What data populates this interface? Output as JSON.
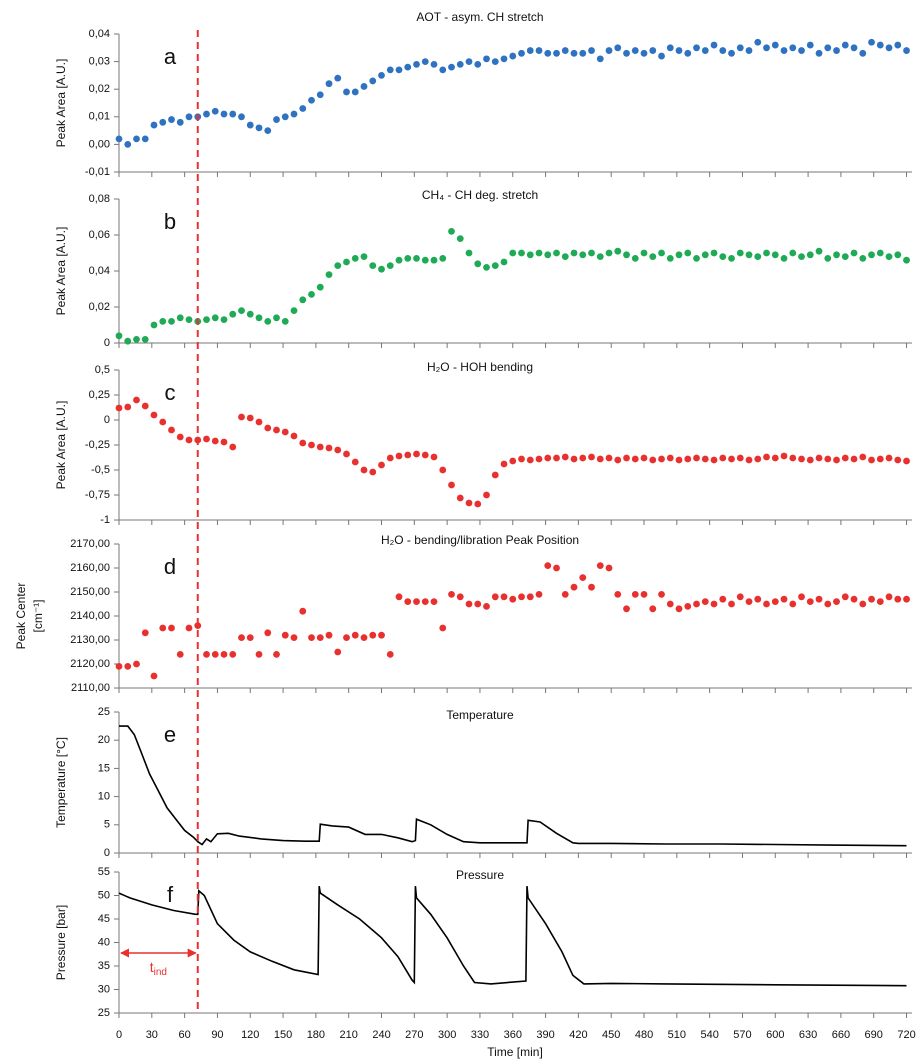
{
  "chart_data": [
    {
      "type": "scatter",
      "panel_label": "a",
      "title": "AOT - asym. CH stretch",
      "ylabel": "Peak Area [A.U.]",
      "color": "#2f72c2",
      "x": [
        0,
        8,
        16,
        24,
        32,
        40,
        48,
        56,
        64,
        72,
        80,
        88,
        96,
        104,
        112,
        120,
        128,
        136,
        144,
        152,
        160,
        168,
        176,
        184,
        192,
        200,
        208,
        216,
        224,
        232,
        240,
        248,
        256,
        264,
        272,
        280,
        288,
        296,
        304,
        312,
        320,
        328,
        336,
        344,
        352,
        360,
        368,
        376,
        384,
        392,
        400,
        408,
        416,
        424,
        432,
        440,
        448,
        456,
        464,
        472,
        480,
        488,
        496,
        504,
        512,
        520,
        528,
        536,
        544,
        552,
        560,
        568,
        576,
        584,
        592,
        600,
        608,
        616,
        624,
        632,
        640,
        648,
        656,
        664,
        672,
        680,
        688,
        696,
        704,
        712,
        720
      ],
      "values": [
        0.002,
        0,
        0.002,
        0.002,
        0.007,
        0.008,
        0.009,
        0.008,
        0.01,
        0.01,
        0.011,
        0.012,
        0.011,
        0.011,
        0.01,
        0.007,
        0.006,
        0.005,
        0.009,
        0.01,
        0.011,
        0.013,
        0.016,
        0.018,
        0.022,
        0.024,
        0.019,
        0.019,
        0.021,
        0.023,
        0.025,
        0.027,
        0.027,
        0.028,
        0.029,
        0.03,
        0.029,
        0.027,
        0.028,
        0.029,
        0.03,
        0.029,
        0.031,
        0.03,
        0.031,
        0.032,
        0.033,
        0.034,
        0.034,
        0.033,
        0.033,
        0.034,
        0.033,
        0.033,
        0.034,
        0.031,
        0.034,
        0.035,
        0.033,
        0.034,
        0.033,
        0.034,
        0.032,
        0.035,
        0.034,
        0.033,
        0.035,
        0.034,
        0.036,
        0.034,
        0.033,
        0.035,
        0.034,
        0.037,
        0.035,
        0.036,
        0.034,
        0.035,
        0.034,
        0.036,
        0.033,
        0.035,
        0.034,
        0.036,
        0.035,
        0.033,
        0.037,
        0.036,
        0.035,
        0.036,
        0.034
      ],
      "xlim": [
        0,
        725
      ],
      "xticks": [
        0,
        30,
        60,
        90,
        120,
        150,
        180,
        210,
        240,
        270,
        300,
        330,
        360,
        390,
        420,
        450,
        480,
        510,
        540,
        570,
        600,
        630,
        660,
        690,
        720
      ],
      "ylim": [
        -0.01,
        0.04
      ],
      "yticks": [
        {
          "value": -0.01,
          "label": "-0,01"
        },
        {
          "value": 0,
          "label": "0,00"
        },
        {
          "value": 0.01,
          "label": "0,01"
        },
        {
          "value": 0.02,
          "label": "0,02"
        },
        {
          "value": 0.03,
          "label": "0,03"
        },
        {
          "value": 0.04,
          "label": "0,04"
        }
      ]
    },
    {
      "type": "scatter",
      "panel_label": "b",
      "title": "CH₄ - CH deg. stretch",
      "ylabel": "Peak Area [A.U.]",
      "color": "#1faa55",
      "x": [
        0,
        8,
        16,
        24,
        32,
        40,
        48,
        56,
        64,
        72,
        80,
        88,
        96,
        104,
        112,
        120,
        128,
        136,
        144,
        152,
        160,
        168,
        176,
        184,
        192,
        200,
        208,
        216,
        224,
        232,
        240,
        248,
        256,
        264,
        272,
        280,
        288,
        296,
        304,
        312,
        320,
        328,
        336,
        344,
        352,
        360,
        368,
        376,
        384,
        392,
        400,
        408,
        416,
        424,
        432,
        440,
        448,
        456,
        464,
        472,
        480,
        488,
        496,
        504,
        512,
        520,
        528,
        536,
        544,
        552,
        560,
        568,
        576,
        584,
        592,
        600,
        608,
        616,
        624,
        632,
        640,
        648,
        656,
        664,
        672,
        680,
        688,
        696,
        704,
        712,
        720
      ],
      "values": [
        0.004,
        0.001,
        0.002,
        0.002,
        0.01,
        0.012,
        0.012,
        0.014,
        0.013,
        0.012,
        0.013,
        0.014,
        0.013,
        0.016,
        0.018,
        0.016,
        0.014,
        0.012,
        0.014,
        0.012,
        0.018,
        0.024,
        0.027,
        0.031,
        0.038,
        0.043,
        0.045,
        0.047,
        0.048,
        0.043,
        0.041,
        0.043,
        0.046,
        0.047,
        0.047,
        0.046,
        0.046,
        0.047,
        0.062,
        0.058,
        0.05,
        0.044,
        0.042,
        0.043,
        0.045,
        0.05,
        0.05,
        0.049,
        0.05,
        0.049,
        0.05,
        0.048,
        0.05,
        0.049,
        0.05,
        0.048,
        0.05,
        0.051,
        0.049,
        0.047,
        0.05,
        0.048,
        0.05,
        0.047,
        0.049,
        0.05,
        0.047,
        0.049,
        0.05,
        0.048,
        0.047,
        0.05,
        0.049,
        0.048,
        0.05,
        0.049,
        0.047,
        0.05,
        0.048,
        0.049,
        0.051,
        0.047,
        0.049,
        0.048,
        0.05,
        0.047,
        0.049,
        0.05,
        0.048,
        0.049,
        0.046
      ],
      "xlim": [
        0,
        725
      ],
      "xticks": [
        0,
        30,
        60,
        90,
        120,
        150,
        180,
        210,
        240,
        270,
        300,
        330,
        360,
        390,
        420,
        450,
        480,
        510,
        540,
        570,
        600,
        630,
        660,
        690,
        720
      ],
      "ylim": [
        0,
        0.08
      ],
      "yticks": [
        0,
        {
          "value": 0.02,
          "label": "0,02"
        },
        {
          "value": 0.04,
          "label": "0,04"
        },
        {
          "value": 0.06,
          "label": "0,06"
        },
        {
          "value": 0.08,
          "label": "0,08"
        }
      ]
    },
    {
      "type": "scatter",
      "panel_label": "c",
      "title": "H₂O - HOH bending",
      "ylabel": "Peak Area [A.U.]",
      "color": "#e8312f",
      "x": [
        0,
        8,
        16,
        24,
        32,
        40,
        48,
        56,
        64,
        72,
        80,
        88,
        96,
        104,
        112,
        120,
        128,
        136,
        144,
        152,
        160,
        168,
        176,
        184,
        192,
        200,
        208,
        216,
        224,
        232,
        240,
        248,
        256,
        264,
        272,
        280,
        288,
        296,
        304,
        312,
        320,
        328,
        336,
        344,
        352,
        360,
        368,
        376,
        384,
        392,
        400,
        408,
        416,
        424,
        432,
        440,
        448,
        456,
        464,
        472,
        480,
        488,
        496,
        504,
        512,
        520,
        528,
        536,
        544,
        552,
        560,
        568,
        576,
        584,
        592,
        600,
        608,
        616,
        624,
        632,
        640,
        648,
        656,
        664,
        672,
        680,
        688,
        696,
        704,
        712,
        720
      ],
      "values": [
        0.12,
        0.13,
        0.2,
        0.14,
        0.05,
        -0.02,
        -0.1,
        -0.17,
        -0.2,
        -0.2,
        -0.19,
        -0.21,
        -0.22,
        -0.27,
        0.03,
        0.02,
        -0.02,
        -0.08,
        -0.1,
        -0.12,
        -0.16,
        -0.23,
        -0.25,
        -0.27,
        -0.28,
        -0.3,
        -0.34,
        -0.42,
        -0.5,
        -0.52,
        -0.45,
        -0.38,
        -0.36,
        -0.35,
        -0.34,
        -0.35,
        -0.37,
        -0.5,
        -0.65,
        -0.78,
        -0.83,
        -0.84,
        -0.75,
        -0.55,
        -0.44,
        -0.41,
        -0.39,
        -0.4,
        -0.39,
        -0.38,
        -0.38,
        -0.37,
        -0.39,
        -0.38,
        -0.37,
        -0.39,
        -0.38,
        -0.4,
        -0.38,
        -0.39,
        -0.38,
        -0.4,
        -0.39,
        -0.38,
        -0.4,
        -0.39,
        -0.38,
        -0.39,
        -0.4,
        -0.38,
        -0.39,
        -0.38,
        -0.4,
        -0.39,
        -0.37,
        -0.38,
        -0.36,
        -0.38,
        -0.39,
        -0.4,
        -0.38,
        -0.39,
        -0.4,
        -0.38,
        -0.39,
        -0.37,
        -0.4,
        -0.39,
        -0.38,
        -0.4,
        -0.41
      ],
      "xlim": [
        0,
        725
      ],
      "xticks": [
        0,
        30,
        60,
        90,
        120,
        150,
        180,
        210,
        240,
        270,
        300,
        330,
        360,
        390,
        420,
        450,
        480,
        510,
        540,
        570,
        600,
        630,
        660,
        690,
        720
      ],
      "ylim": [
        -1,
        0.5
      ],
      "yticks": [
        -1,
        {
          "value": -0.75,
          "label": "-0,75"
        },
        {
          "value": -0.5,
          "label": "-0,5"
        },
        {
          "value": -0.25,
          "label": "-0,25"
        },
        0,
        {
          "value": 0.25,
          "label": "0,25"
        },
        {
          "value": 0.5,
          "label": "0,5"
        }
      ]
    },
    {
      "type": "scatter",
      "panel_label": "d",
      "title": "H₂O - bending/libration Peak Position",
      "ylabel": [
        "Peak Center",
        "[cm⁻¹]"
      ],
      "color": "#e8312f",
      "x": [
        0,
        8,
        16,
        24,
        32,
        40,
        48,
        56,
        64,
        72,
        80,
        88,
        96,
        104,
        112,
        120,
        128,
        136,
        144,
        152,
        160,
        168,
        176,
        184,
        192,
        200,
        208,
        216,
        224,
        232,
        240,
        248,
        256,
        264,
        272,
        280,
        288,
        296,
        304,
        312,
        320,
        328,
        336,
        344,
        352,
        360,
        368,
        376,
        384,
        392,
        400,
        408,
        416,
        424,
        432,
        440,
        448,
        456,
        464,
        472,
        480,
        488,
        496,
        504,
        512,
        520,
        528,
        536,
        544,
        552,
        560,
        568,
        576,
        584,
        592,
        600,
        608,
        616,
        624,
        632,
        640,
        648,
        656,
        664,
        672,
        680,
        688,
        696,
        704,
        712,
        720
      ],
      "values": [
        2119,
        2119,
        2120,
        2133,
        2115,
        2135,
        2135,
        2124,
        2135,
        2136,
        2124,
        2124,
        2124,
        2124,
        2131,
        2131,
        2124,
        2133,
        2124,
        2132,
        2131,
        2142,
        2131,
        2131,
        2132,
        2125,
        2131,
        2132,
        2131,
        2132,
        2132,
        2124,
        2148,
        2146,
        2146,
        2146,
        2146,
        2135,
        2149,
        2148,
        2145,
        2145,
        2144,
        2148,
        2148,
        2147,
        2148,
        2148,
        2149,
        2161,
        2160,
        2149,
        2152,
        2156,
        2152,
        2161,
        2160,
        2149,
        2143,
        2149,
        2149,
        2143,
        2149,
        2145,
        2143,
        2144,
        2145,
        2146,
        2145,
        2147,
        2145,
        2148,
        2146,
        2147,
        2145,
        2146,
        2147,
        2145,
        2148,
        2146,
        2147,
        2145,
        2146,
        2148,
        2147,
        2145,
        2147,
        2146,
        2148,
        2147,
        2147
      ],
      "xlim": [
        0,
        725
      ],
      "xticks": [
        0,
        30,
        60,
        90,
        120,
        150,
        180,
        210,
        240,
        270,
        300,
        330,
        360,
        390,
        420,
        450,
        480,
        510,
        540,
        570,
        600,
        630,
        660,
        690,
        720
      ],
      "ylim": [
        2110,
        2170
      ],
      "yticks": [
        {
          "value": 2110,
          "label": "2110,00"
        },
        {
          "value": 2120,
          "label": "2120,00"
        },
        {
          "value": 2130,
          "label": "2130,00"
        },
        {
          "value": 2140,
          "label": "2140,00"
        },
        {
          "value": 2150,
          "label": "2150,00"
        },
        {
          "value": 2160,
          "label": "2160,00"
        },
        {
          "value": 2170,
          "label": "2170,00"
        }
      ]
    },
    {
      "type": "line",
      "panel_label": "e",
      "title": "Temperature",
      "ylabel": "Temperature [°C]",
      "color": "#000000",
      "x": [
        0,
        8,
        14,
        20,
        28,
        36,
        44,
        52,
        60,
        68,
        72,
        76,
        80,
        84,
        90,
        100,
        110,
        130,
        150,
        170,
        183,
        184,
        195,
        210,
        225,
        240,
        255,
        268,
        271,
        272,
        285,
        300,
        315,
        330,
        350,
        373,
        374,
        385,
        400,
        415,
        420,
        450,
        500,
        550,
        600,
        650,
        720
      ],
      "values": [
        22.5,
        22.5,
        21,
        18,
        14,
        11,
        8,
        6,
        4,
        2.8,
        2,
        1.5,
        2.5,
        2,
        3.4,
        3.5,
        3,
        2.5,
        2.2,
        2.1,
        2.1,
        5.1,
        4.8,
        4.6,
        3.3,
        3.3,
        2.7,
        2,
        2.2,
        6,
        5,
        3.3,
        2,
        1.8,
        1.8,
        1.8,
        5.8,
        5.5,
        3.5,
        1.8,
        1.7,
        1.7,
        1.6,
        1.6,
        1.5,
        1.4,
        1.3
      ],
      "xlim": [
        0,
        725
      ],
      "xticks": [
        0,
        30,
        60,
        90,
        120,
        150,
        180,
        210,
        240,
        270,
        300,
        330,
        360,
        390,
        420,
        450,
        480,
        510,
        540,
        570,
        600,
        630,
        660,
        690,
        720
      ],
      "ylim": [
        0,
        25
      ],
      "yticks": [
        0,
        5,
        10,
        15,
        20,
        25
      ]
    },
    {
      "type": "line",
      "panel_label": "f",
      "title": "Pressure",
      "ylabel": "Pressure [bar]",
      "xlabel": "Time [min]",
      "color": "#000000",
      "x": [
        0,
        10,
        30,
        50,
        70,
        72,
        73,
        78,
        90,
        105,
        120,
        140,
        160,
        182,
        183,
        184,
        200,
        220,
        240,
        255,
        268,
        270,
        271,
        272,
        285,
        300,
        315,
        325,
        340,
        372,
        373,
        374,
        390,
        405,
        415,
        425,
        450,
        500,
        600,
        720
      ],
      "values": [
        50.5,
        49.5,
        48,
        46.8,
        46,
        46,
        51,
        50,
        44,
        40.5,
        38,
        36,
        34.2,
        33.2,
        52,
        50.5,
        48,
        45,
        41,
        37,
        32,
        31.5,
        52,
        49.5,
        46,
        41,
        35,
        31.5,
        31.2,
        31.8,
        52,
        49.5,
        44,
        38,
        33,
        31.2,
        31.3,
        31.2,
        31,
        30.8
      ],
      "xlim": [
        0,
        725
      ],
      "xticks": [
        0,
        30,
        60,
        90,
        120,
        150,
        180,
        210,
        240,
        270,
        300,
        330,
        360,
        390,
        420,
        450,
        480,
        510,
        540,
        570,
        600,
        630,
        660,
        690,
        720
      ],
      "ylim": [
        25,
        55
      ],
      "yticks": [
        25,
        30,
        35,
        40,
        45,
        50,
        55
      ]
    }
  ],
  "induction_line": {
    "x": 72,
    "color": "#e8312f",
    "label": "t",
    "label_sub": "ind"
  }
}
